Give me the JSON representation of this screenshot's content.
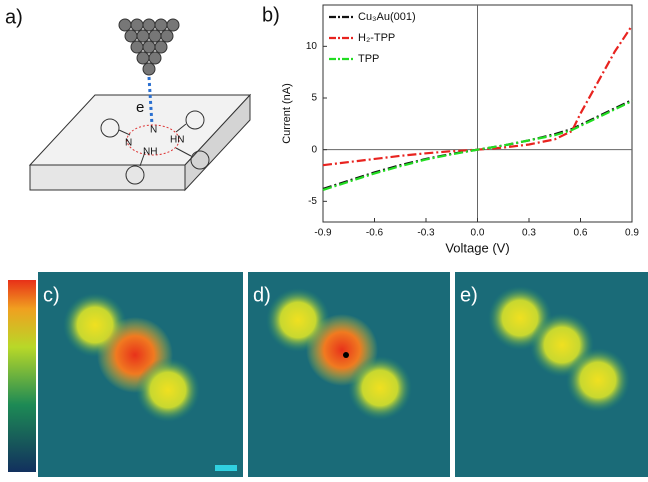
{
  "panels": {
    "a": "a)",
    "b": "b)",
    "c": "c)",
    "d": "d)",
    "e": "e)"
  },
  "illustration": {
    "electron": "e",
    "atoms": [
      "N",
      "NH",
      "HN",
      "N"
    ]
  },
  "chart_data": {
    "type": "line",
    "x_label": "Voltage (V)",
    "y_label": "Current (nA)",
    "x": [
      -0.9,
      -0.75,
      -0.6,
      -0.45,
      -0.3,
      -0.15,
      0,
      0.15,
      0.3,
      0.45,
      0.55,
      0.6,
      0.7,
      0.8,
      0.9
    ],
    "series": [
      {
        "name": "Cu₃Au(001)",
        "color": "#111111",
        "values": [
          -3.8,
          -3.0,
          -2.2,
          -1.5,
          -0.9,
          -0.4,
          0,
          0.4,
          0.9,
          1.5,
          2.0,
          2.4,
          3.2,
          4.0,
          4.8
        ]
      },
      {
        "name": "H₂-TPP",
        "color": "#e8231f",
        "values": [
          -1.5,
          -1.2,
          -0.9,
          -0.6,
          -0.35,
          -0.15,
          0,
          0.2,
          0.5,
          1.0,
          1.8,
          3.5,
          6.5,
          9.5,
          12.0
        ]
      },
      {
        "name": "TPP",
        "color": "#22dd22",
        "values": [
          -3.9,
          -3.1,
          -2.3,
          -1.6,
          -0.95,
          -0.45,
          0,
          0.4,
          0.9,
          1.4,
          1.9,
          2.3,
          3.1,
          3.9,
          4.7
        ]
      }
    ],
    "xlim": [
      -0.9,
      0.9
    ],
    "xticks": [
      -0.9,
      -0.6,
      -0.3,
      {
        "value": 0,
        "label": "0.0"
      },
      0.3,
      0.6,
      0.9
    ],
    "ylim": [
      -7,
      14
    ],
    "yticks": [
      -5,
      0,
      5,
      10
    ],
    "legend": "upper-left"
  }
}
